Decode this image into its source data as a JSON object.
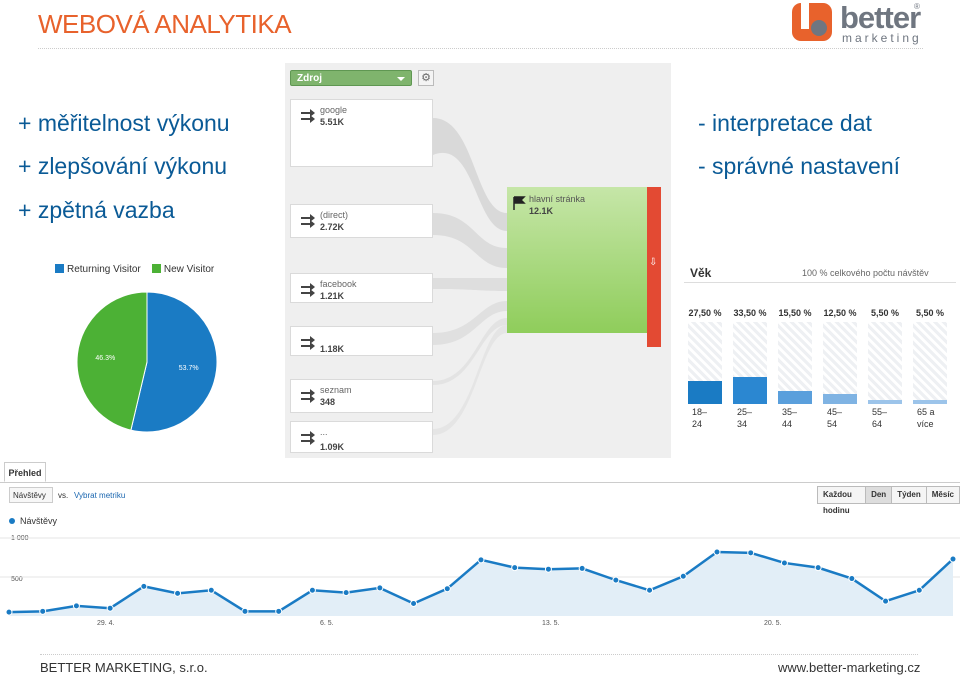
{
  "header": {
    "title": "WEBOVÁ ANALYTIKA",
    "logo": {
      "word": "better",
      "sub": "marketing",
      "reg": "®"
    }
  },
  "pros": [
    "+ měřitelnost výkonu",
    "+ zlepšování výkonu",
    "+ zpětná vazba"
  ],
  "cons": [
    "- interpretace dat",
    "- správné nastavení"
  ],
  "flow": {
    "dimension": "Zdroj",
    "gear": "⚙",
    "sources": [
      {
        "name": "google",
        "value": "5.51K"
      },
      {
        "name": "(direct)",
        "value": "2.72K"
      },
      {
        "name": "facebook",
        "value": "1.21K"
      },
      {
        "name": "",
        "value": "1.18K"
      },
      {
        "name": "seznam",
        "value": "348"
      },
      {
        "name": "...",
        "value": "1.09K"
      }
    ],
    "target": {
      "name": "hlavní stránka",
      "value": "12.1K"
    },
    "exit_arrow": "⇩",
    "colors": {
      "node_green": "#8fcd5b",
      "exit_red": "#e34a33"
    }
  },
  "pie": {
    "legend": [
      "Returning Visitor",
      "New Visitor"
    ],
    "labels": [
      "53.7%",
      "46.3%"
    ],
    "values": [
      53.7,
      46.3
    ],
    "colors": [
      "#1a7bc4",
      "#4cb135"
    ]
  },
  "age": {
    "title": "Věk",
    "subtitle": "100 % celkového počtu návštěv",
    "groups": [
      {
        "pct": "27,50 %",
        "value": 27.5,
        "label": [
          "18–",
          "24"
        ]
      },
      {
        "pct": "33,50 %",
        "value": 33.5,
        "label": [
          "25–",
          "34"
        ]
      },
      {
        "pct": "15,50 %",
        "value": 15.5,
        "label": [
          "35–",
          "44"
        ]
      },
      {
        "pct": "12,50 %",
        "value": 12.5,
        "label": [
          "45–",
          "54"
        ]
      },
      {
        "pct": "5,50 %",
        "value": 5.5,
        "label": [
          "55–",
          "64"
        ]
      },
      {
        "pct": "5,50 %",
        "value": 5.5,
        "label": [
          "65 a",
          "více"
        ]
      }
    ],
    "colors": [
      "#1a7bc4",
      "#2b87d1",
      "#5a9fdc",
      "#7fb3e3",
      "#9cc4ea",
      "#9cc4ea"
    ]
  },
  "overview": {
    "tab": "Přehled",
    "metric": "Návštěvy",
    "vs": "vs.",
    "choose": "Vybrat metriku",
    "buttons": [
      "Každou hodinu",
      "Den",
      "Týden",
      "Měsíc"
    ],
    "active_button": "Den",
    "series_name": "Návštěvy",
    "y_ticks": [
      "1 000",
      "500"
    ],
    "x_ticks": [
      "29. 4.",
      "6. 5.",
      "13. 5.",
      "20. 5."
    ],
    "chart_data": {
      "type": "area",
      "series": [
        {
          "name": "Návštěvy",
          "values": [
            50,
            60,
            130,
            100,
            380,
            290,
            330,
            60,
            60,
            330,
            300,
            360,
            160,
            350,
            720,
            620,
            600,
            610,
            460,
            330,
            510,
            820,
            810,
            680,
            620,
            480,
            190,
            330,
            730
          ]
        }
      ],
      "ylim": [
        0,
        1000
      ],
      "color": "#1a7bc4"
    }
  },
  "footer": {
    "left": "BETTER MARKETING, s.r.o.",
    "right": "www.better-marketing.cz"
  }
}
